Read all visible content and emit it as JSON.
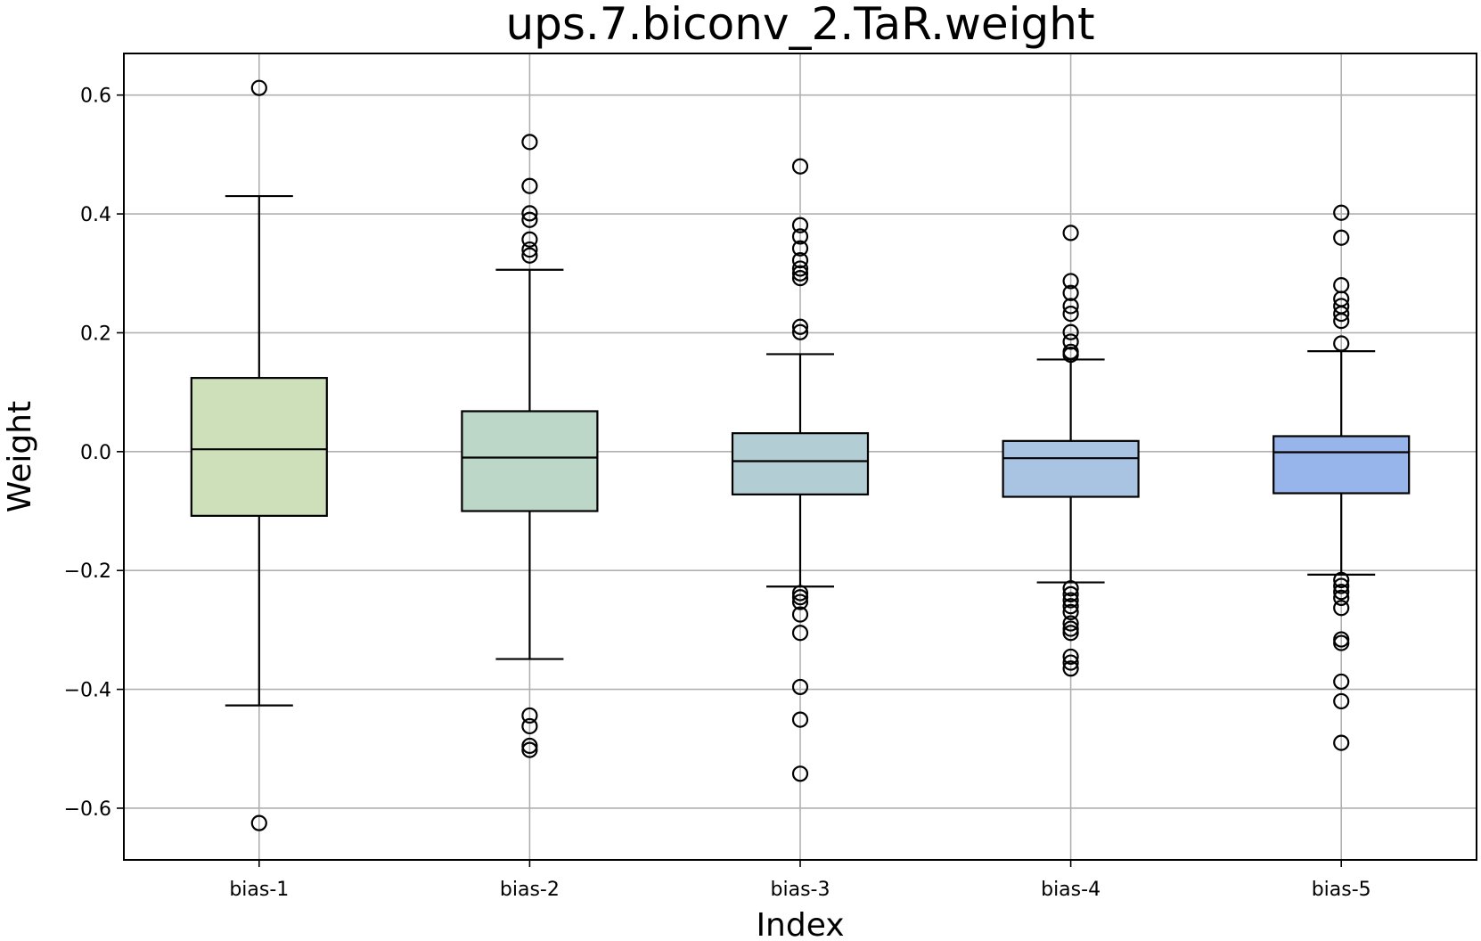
{
  "chart_data": {
    "type": "box",
    "title": "ups.7.biconv_2.TaR.weight",
    "xlabel": "Index",
    "ylabel": "Weight",
    "ylim": [
      -0.687,
      0.67
    ],
    "yticks": [
      0.6,
      0.4,
      0.2,
      0.0,
      -0.2,
      -0.4,
      -0.6
    ],
    "ytick_labels": [
      "0.6",
      "0.4",
      "0.2",
      "0.0",
      "−0.2",
      "−0.4",
      "−0.6"
    ],
    "grid": true,
    "categories": [
      "bias-1",
      "bias-2",
      "bias-3",
      "bias-4",
      "bias-5"
    ],
    "boxes": [
      {
        "label": "bias-1",
        "color": "#cde0b9",
        "whisker_low": -0.427,
        "q1": -0.108,
        "median": 0.004,
        "q3": 0.124,
        "whisker_high": 0.43,
        "outliers": [
          0.612,
          -0.625
        ]
      },
      {
        "label": "bias-2",
        "color": "#bcd6c8",
        "whisker_low": -0.349,
        "q1": -0.1,
        "median": -0.01,
        "q3": 0.068,
        "whisker_high": 0.306,
        "outliers": [
          0.521,
          0.447,
          0.401,
          0.39,
          0.357,
          0.34,
          0.33,
          -0.444,
          -0.462,
          -0.495,
          -0.502
        ]
      },
      {
        "label": "bias-3",
        "color": "#b3cdd5",
        "whisker_low": -0.227,
        "q1": -0.072,
        "median": -0.016,
        "q3": 0.031,
        "whisker_high": 0.164,
        "outliers": [
          0.48,
          0.381,
          0.362,
          0.342,
          0.322,
          0.308,
          0.3,
          0.292,
          0.21,
          0.201,
          -0.238,
          -0.245,
          -0.253,
          -0.274,
          -0.305,
          -0.396,
          -0.451,
          -0.542
        ]
      },
      {
        "label": "bias-4",
        "color": "#a8c4e2",
        "whisker_low": -0.22,
        "q1": -0.076,
        "median": -0.011,
        "q3": 0.018,
        "whisker_high": 0.155,
        "outliers": [
          0.368,
          0.287,
          0.267,
          0.245,
          0.232,
          0.201,
          0.185,
          0.168,
          0.163,
          -0.23,
          -0.24,
          -0.25,
          -0.26,
          -0.27,
          -0.289,
          -0.298,
          -0.305,
          -0.345,
          -0.355,
          -0.365
        ]
      },
      {
        "label": "bias-5",
        "color": "#97b5ea",
        "whisker_low": -0.207,
        "q1": -0.07,
        "median": -0.001,
        "q3": 0.026,
        "whisker_high": 0.169,
        "outliers": [
          0.402,
          0.36,
          0.28,
          0.257,
          0.245,
          0.232,
          0.22,
          0.182,
          -0.216,
          -0.226,
          -0.236,
          -0.246,
          -0.263,
          -0.316,
          -0.322,
          -0.387,
          -0.42,
          -0.49
        ]
      }
    ]
  }
}
